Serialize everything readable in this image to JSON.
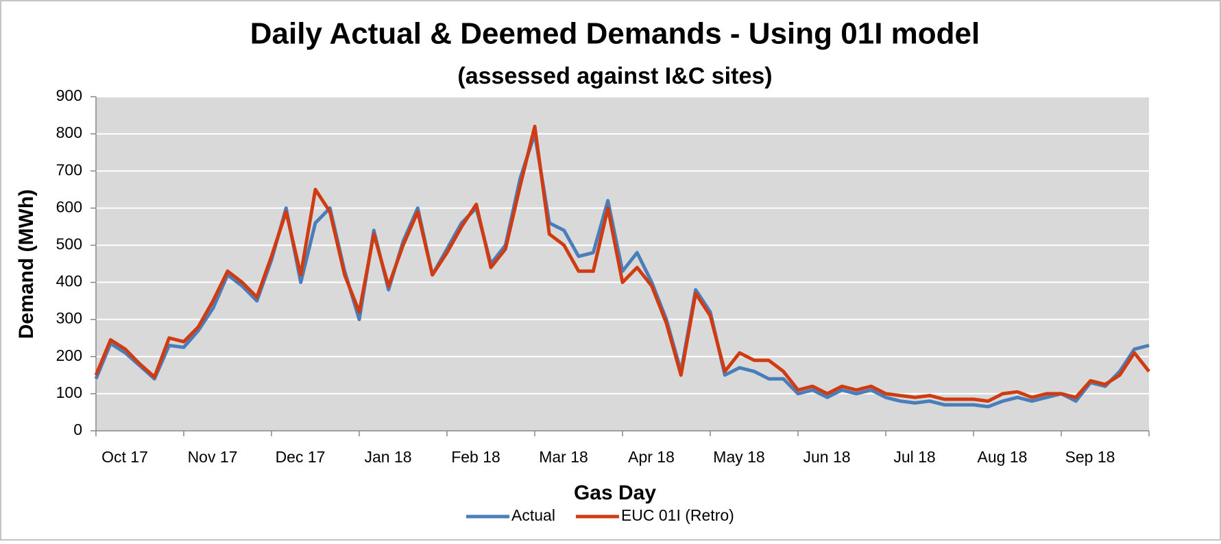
{
  "chart_data": {
    "type": "line",
    "title": "Daily Actual & Deemed Demands - Using 01I model",
    "subtitle": "(assessed against I&C sites)",
    "x_label": "Gas Day",
    "y_label": "Demand (MWh)",
    "categories": [
      "Oct 17",
      null,
      null,
      null,
      null,
      null,
      "Nov 17",
      null,
      null,
      null,
      null,
      null,
      "Dec 17",
      null,
      null,
      null,
      null,
      null,
      "Jan 18",
      null,
      null,
      null,
      null,
      null,
      "Feb 18",
      null,
      null,
      null,
      null,
      null,
      "Mar 18",
      null,
      null,
      null,
      null,
      null,
      "Apr 18",
      null,
      null,
      null,
      null,
      null,
      "May 18",
      null,
      null,
      null,
      null,
      null,
      "Jun 18",
      null,
      null,
      null,
      null,
      null,
      "Jul 18",
      null,
      null,
      null,
      null,
      null,
      "Aug 18",
      null,
      null,
      null,
      null,
      null,
      "Sep 18",
      null,
      null,
      null,
      null,
      null,
      null
    ],
    "series": [
      {
        "name": "Actual",
        "color": "#4a7ebb",
        "values": [
          140,
          235,
          210,
          175,
          140,
          230,
          225,
          270,
          330,
          420,
          390,
          350,
          460,
          600,
          400,
          560,
          600,
          430,
          300,
          540,
          380,
          510,
          600,
          420,
          490,
          560,
          600,
          450,
          500,
          680,
          800,
          560,
          540,
          470,
          480,
          620,
          430,
          480,
          400,
          300,
          160,
          380,
          320,
          150,
          170,
          160,
          140,
          140,
          100,
          110,
          90,
          110,
          100,
          110,
          90,
          80,
          75,
          80,
          70,
          70,
          70,
          65,
          80,
          90,
          80,
          90,
          100,
          80,
          130,
          120,
          160,
          220,
          230
        ]
      },
      {
        "name": "EUC 01I (Retro)",
        "color": "#d13b12",
        "values": [
          150,
          245,
          220,
          180,
          145,
          250,
          240,
          280,
          350,
          430,
          400,
          360,
          470,
          590,
          420,
          650,
          590,
          420,
          320,
          530,
          390,
          500,
          590,
          420,
          480,
          550,
          610,
          440,
          490,
          660,
          820,
          530,
          500,
          430,
          430,
          600,
          400,
          440,
          390,
          290,
          150,
          370,
          310,
          160,
          210,
          190,
          190,
          160,
          110,
          120,
          100,
          120,
          110,
          120,
          100,
          95,
          90,
          95,
          85,
          85,
          85,
          80,
          100,
          105,
          90,
          100,
          100,
          90,
          135,
          125,
          150,
          210,
          160
        ]
      }
    ],
    "ylim": [
      0,
      900
    ],
    "yticks": [
      0,
      100,
      200,
      300,
      400,
      500,
      600,
      700,
      800,
      900
    ],
    "grid": true,
    "legend": "bottom"
  }
}
